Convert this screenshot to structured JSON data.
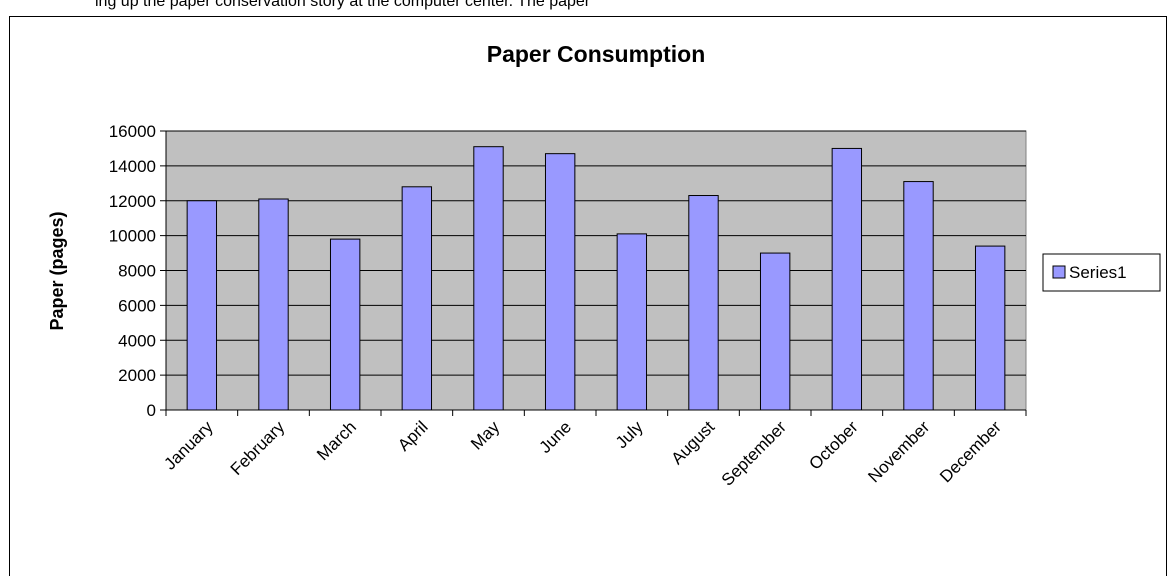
{
  "page": {
    "top_text": "ing up the paper conservation story at the computer center. The paper"
  },
  "chart_data": {
    "type": "bar",
    "title": "Paper Consumption",
    "xlabel": "",
    "ylabel": "Paper (pages)",
    "categories": [
      "January",
      "February",
      "March",
      "April",
      "May",
      "June",
      "July",
      "August",
      "September",
      "October",
      "November",
      "December"
    ],
    "series": [
      {
        "name": "Series1",
        "values": [
          12000,
          12100,
          9800,
          12800,
          15100,
          14700,
          10100,
          12300,
          9000,
          15000,
          13100,
          9400
        ]
      }
    ],
    "ylim": [
      0,
      16000
    ],
    "yticks": [
      "0",
      "2000",
      "4000",
      "6000",
      "8000",
      "10000",
      "12000",
      "14000",
      "16000"
    ],
    "grid": true,
    "legend_position": "right",
    "colors": {
      "bar_fill": "#9999ff",
      "bar_stroke": "#000000",
      "plot_background": "#c0c0c0",
      "gridline": "#000000"
    }
  }
}
